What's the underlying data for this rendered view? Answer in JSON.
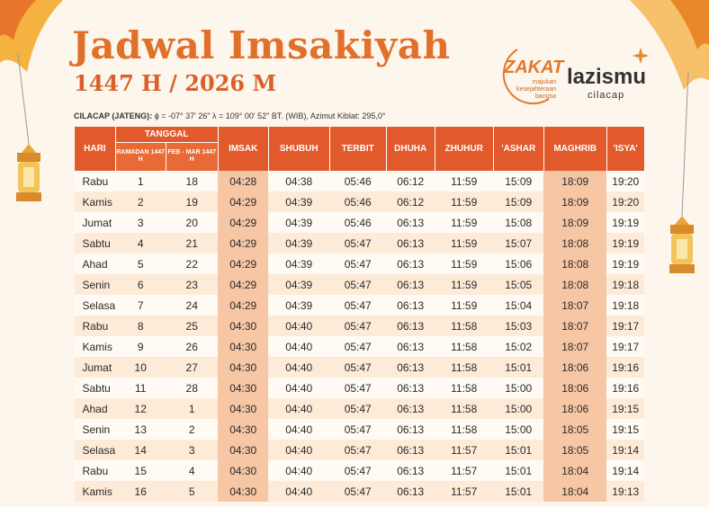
{
  "header": {
    "title": "Jadwal Imsakiyah",
    "subtitle": "1447 H / 2026 M"
  },
  "logos": {
    "zakat": "ZAKAT",
    "zakat_tagline": "majukan kesejahteraan bangsa",
    "org": "lazismu",
    "org_city": "cilacap"
  },
  "location": {
    "label": "CILACAP (JATENG):",
    "details": "ϕ = -07° 37' 26\"  λ = 109° 00' 52\" BT. (WIB), Azimut Kiblat: 295,0°"
  },
  "table": {
    "headers": [
      "HARI",
      "TANGGAL",
      "IMSAK",
      "SHUBUH",
      "TERBIT",
      "DHUHA",
      "ZHUHUR",
      "'ASHAR",
      "MAGHRIB",
      "'ISYA'"
    ],
    "subheaders": [
      "RAMADAN 1447 H",
      "FEB - MAR 1447 H"
    ],
    "rows": [
      [
        "Rabu",
        "1",
        "18",
        "04:28",
        "04:38",
        "05:46",
        "06:12",
        "11:59",
        "15:09",
        "18:09",
        "19:20"
      ],
      [
        "Kamis",
        "2",
        "19",
        "04:29",
        "04:39",
        "05:46",
        "06:12",
        "11:59",
        "15:09",
        "18:09",
        "19:20"
      ],
      [
        "Jumat",
        "3",
        "20",
        "04:29",
        "04:39",
        "05:46",
        "06:13",
        "11:59",
        "15:08",
        "18:09",
        "19:19"
      ],
      [
        "Sabtu",
        "4",
        "21",
        "04:29",
        "04:39",
        "05:47",
        "06:13",
        "11:59",
        "15:07",
        "18:08",
        "19:19"
      ],
      [
        "Ahad",
        "5",
        "22",
        "04:29",
        "04:39",
        "05:47",
        "06:13",
        "11:59",
        "15:06",
        "18:08",
        "19:19"
      ],
      [
        "Senin",
        "6",
        "23",
        "04:29",
        "04:39",
        "05:47",
        "06:13",
        "11:59",
        "15:05",
        "18:08",
        "19:18"
      ],
      [
        "Selasa",
        "7",
        "24",
        "04:29",
        "04:39",
        "05:47",
        "06:13",
        "11:59",
        "15:04",
        "18:07",
        "19:18"
      ],
      [
        "Rabu",
        "8",
        "25",
        "04:30",
        "04:40",
        "05:47",
        "06:13",
        "11:58",
        "15:03",
        "18:07",
        "19:17"
      ],
      [
        "Kamis",
        "9",
        "26",
        "04:30",
        "04:40",
        "05:47",
        "06:13",
        "11:58",
        "15:02",
        "18:07",
        "19:17"
      ],
      [
        "Jumat",
        "10",
        "27",
        "04:30",
        "04:40",
        "05:47",
        "06:13",
        "11:58",
        "15:01",
        "18:06",
        "19:16"
      ],
      [
        "Sabtu",
        "11",
        "28",
        "04:30",
        "04:40",
        "05:47",
        "06:13",
        "11:58",
        "15:00",
        "18:06",
        "19:16"
      ],
      [
        "Ahad",
        "12",
        "1",
        "04:30",
        "04:40",
        "05:47",
        "06:13",
        "11:58",
        "15:00",
        "18:06",
        "19:15"
      ],
      [
        "Senin",
        "13",
        "2",
        "04:30",
        "04:40",
        "05:47",
        "06:13",
        "11:58",
        "15:00",
        "18:05",
        "19:15"
      ],
      [
        "Selasa",
        "14",
        "3",
        "04:30",
        "04:40",
        "05:47",
        "06:13",
        "11:57",
        "15:01",
        "18:05",
        "19:14"
      ],
      [
        "Rabu",
        "15",
        "4",
        "04:30",
        "04:40",
        "05:47",
        "06:13",
        "11:57",
        "15:01",
        "18:04",
        "19:14"
      ],
      [
        "Kamis",
        "16",
        "5",
        "04:30",
        "04:40",
        "05:47",
        "06:13",
        "11:57",
        "15:01",
        "18:04",
        "19:13"
      ]
    ]
  }
}
